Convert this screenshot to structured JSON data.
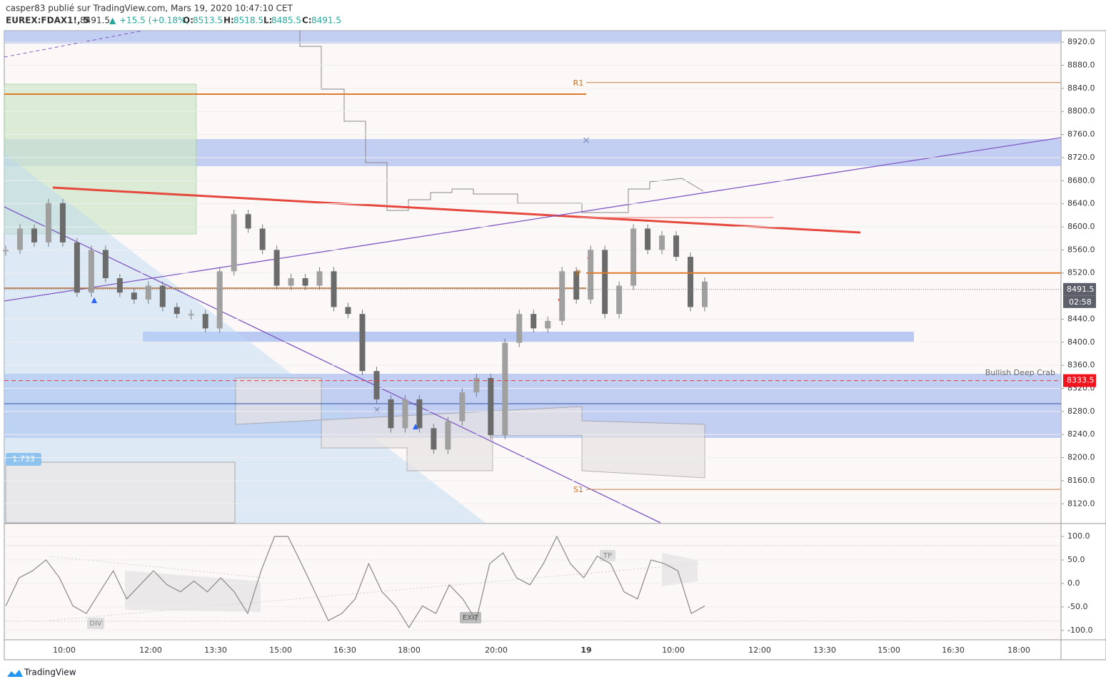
{
  "header": {
    "publisher": "casper83 publié sur TradingView.com, Mars 19, 2020 10:47:10 CET",
    "symbol": "EUREX:FDAX1!, 5",
    "last": "8491.5",
    "change": "+15.5 (+0.18%)",
    "o_label": "O:",
    "o": "8513.5",
    "h_label": "H:",
    "h": "8518.5",
    "l_label": "L:",
    "l": "8485.5",
    "c_label": "C:",
    "c": "8491.5"
  },
  "chart_data": [
    {
      "type": "candlestick",
      "ylim": [
        8087,
        8940
      ],
      "yticks": [
        {
          "value": 8920,
          "label": "8920.0"
        },
        {
          "value": 8880,
          "label": "8880.0"
        },
        {
          "value": 8840,
          "label": "8840.0"
        },
        {
          "value": 8800,
          "label": "8800.0"
        },
        {
          "value": 8760,
          "label": "8760.0"
        },
        {
          "value": 8720,
          "label": "8720.0"
        },
        {
          "value": 8680,
          "label": "8680.0"
        },
        {
          "value": 8640,
          "label": "8640.0"
        },
        {
          "value": 8600,
          "label": "8600.0"
        },
        {
          "value": 8560,
          "label": "8560.0"
        },
        {
          "value": 8520,
          "label": "8520.0"
        },
        {
          "value": 8440,
          "label": "8440.0"
        },
        {
          "value": 8400,
          "label": "8400.0"
        },
        {
          "value": 8360,
          "label": "8360.0"
        },
        {
          "value": 8320,
          "label": "8320.0"
        },
        {
          "value": 8280,
          "label": "8280.0"
        },
        {
          "value": 8240,
          "label": "8240.0"
        },
        {
          "value": 8200,
          "label": "8200.0"
        },
        {
          "value": 8160,
          "label": "8160.0"
        },
        {
          "value": 8120,
          "label": "8120.0"
        }
      ],
      "values": [
        8560,
        8597,
        8573,
        8641,
        8573,
        8486,
        8560,
        8511,
        8486,
        8474,
        8498,
        8461,
        8449,
        8449,
        8424,
        8523,
        8622,
        8597,
        8560,
        8498,
        8511,
        8498,
        8523,
        8461,
        8449,
        8350,
        8301,
        8251,
        8301,
        8251,
        8214,
        8263,
        8313,
        8338,
        8239,
        8399,
        8449,
        8424,
        8437,
        8523,
        8474,
        8560,
        8449,
        8498,
        8597,
        8560,
        8585,
        8548,
        8461,
        8505
      ],
      "levels": [
        {
          "label": "R1",
          "value": 8850
        },
        {
          "label": "P",
          "value": 8520
        },
        {
          "label": "S1",
          "value": 8145
        }
      ],
      "last_price": {
        "value": 8491.5,
        "label": "8491.5",
        "countdown": "02:58"
      },
      "pattern": {
        "label": "Bullish Deep Crab",
        "value": 8333.5,
        "price_label": "8333.5"
      },
      "fib_label": "1.733",
      "time_labels": [
        "10:00",
        "12:00",
        "13:30",
        "15:00",
        "16:30",
        "18:00",
        "20:00",
        "19",
        "10:00",
        "12:00",
        "13:30",
        "15:00",
        "16:30",
        "18:00"
      ]
    },
    {
      "type": "line",
      "ylim": [
        -120,
        126
      ],
      "yticks": [
        {
          "value": 100,
          "label": "100.0"
        },
        {
          "value": 50,
          "label": "50.0"
        },
        {
          "value": 0,
          "label": "0.0"
        },
        {
          "value": -50,
          "label": "-50.0"
        },
        {
          "value": -100,
          "label": "-100.0"
        }
      ],
      "values": [
        -48,
        12,
        27,
        50,
        12,
        -48,
        -64,
        -18,
        27,
        -33,
        -3,
        27,
        -3,
        -18,
        5,
        -18,
        12,
        -18,
        -64,
        27,
        100,
        100,
        42,
        -18,
        -79,
        -64,
        -33,
        42,
        -18,
        -48,
        -94,
        -48,
        -64,
        -3,
        -33,
        -79,
        42,
        65,
        12,
        -3,
        42,
        100,
        42,
        12,
        58,
        42,
        -18,
        -33,
        50,
        42,
        27,
        -64,
        -48
      ],
      "color": "#888888",
      "annotations": [
        "DIV",
        "EXIT",
        "TP"
      ]
    }
  ],
  "footer": {
    "brand": "TradingView"
  }
}
